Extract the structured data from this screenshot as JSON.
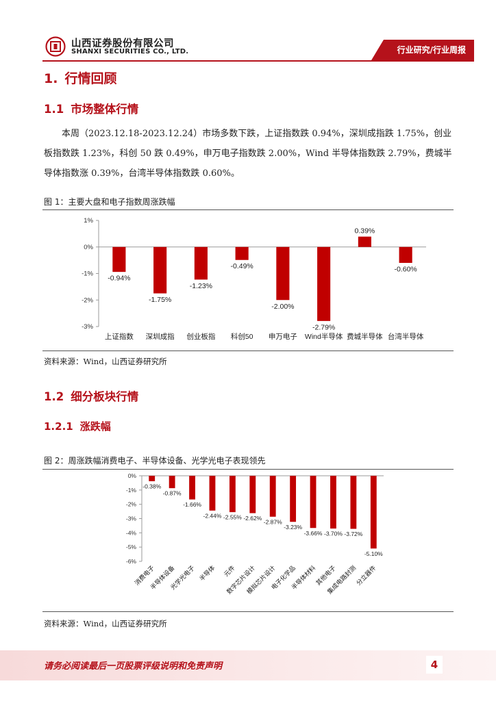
{
  "header": {
    "company_cn": "山西证券股份有限公司",
    "company_en": "SHANXI SECURITIES CO., LTD.",
    "report_tag": "行业研究/行业周报"
  },
  "section1": {
    "number": "1.",
    "title": "行情回顾"
  },
  "section1_1": {
    "number": "1.1",
    "title": "市场整体行情"
  },
  "paragraph": "本周（2023.12.18-2023.12.24）市场多数下跌，上证指数跌 0.94%，深圳成指跌 1.75%，创业板指数跌 1.23%，科创 50 跌 0.49%，申万电子指数跌 2.00%，Wind 半导体指数跌 2.79%，费城半导体指数涨 0.39%，台湾半导体指数跌 0.60%。",
  "figure1": {
    "caption": "图 1：主要大盘和电子指数周涨跌幅",
    "source": "资料来源：Wind，山西证券研究所"
  },
  "section1_2": {
    "number": "1.2",
    "title": "细分板块行情"
  },
  "section1_2_1": {
    "number": "1.2.1",
    "title": "涨跌幅"
  },
  "figure2": {
    "caption": "图 2：周涨跌幅消费电子、半导体设备、光学光电子表现领先",
    "source": "资料来源：Wind，山西证券研究所"
  },
  "chart_data": [
    {
      "type": "bar",
      "title": "",
      "categories": [
        "上证指数",
        "深圳成指",
        "创业板指",
        "科创50",
        "申万电子",
        "Wind半导体",
        "费城半导体",
        "台湾半导体"
      ],
      "values": [
        -0.94,
        -1.75,
        -1.23,
        -0.49,
        -2.0,
        -2.79,
        0.39,
        -0.6
      ],
      "value_labels": [
        "-0.94%",
        "-1.75%",
        "-1.23%",
        "-0.49%",
        "-2.00%",
        "-2.79%",
        "0.39%",
        "-0.60%"
      ],
      "y_ticks": [
        1,
        0,
        -1,
        -2,
        -3
      ],
      "y_tick_labels": [
        "1%",
        "0%",
        "-1%",
        "-2%",
        "-3%"
      ],
      "ylim": [
        -3,
        1
      ],
      "color": "#c00000",
      "xlabel": "",
      "ylabel": "",
      "grid": false
    },
    {
      "type": "bar",
      "title": "",
      "categories": [
        "消费电子",
        "半导体设备",
        "光学光电子",
        "半导体",
        "元件",
        "数字芯片设计",
        "模拟芯片设计",
        "电子化学品",
        "半导体材料",
        "其他电子",
        "集成电路封测",
        "分立器件"
      ],
      "values": [
        -0.38,
        -0.87,
        -1.66,
        -2.44,
        -2.55,
        -2.62,
        -2.87,
        -3.23,
        -3.66,
        -3.7,
        -3.72,
        -5.1
      ],
      "value_labels": [
        "-0.38%",
        "-0.87%",
        "-1.66%",
        "-2.44%",
        "-2.55%",
        "-2.62%",
        "-2.87%",
        "-3.23%",
        "-3.66%",
        "-3.70%",
        "-3.72%",
        "-5.10%"
      ],
      "y_ticks": [
        0,
        -1,
        -2,
        -3,
        -4,
        -5,
        -6
      ],
      "y_tick_labels": [
        "0%",
        "-1%",
        "-2%",
        "-3%",
        "-4%",
        "-5%",
        "-6%"
      ],
      "ylim": [
        -6,
        0
      ],
      "color": "#c00000",
      "xlabel": "",
      "ylabel": "",
      "grid": false
    }
  ],
  "footer": {
    "disclaimer": "请务必阅读最后一页股票评级说明和免责声明",
    "page_number": "4"
  },
  "colors": {
    "brand_red": "#b5121b",
    "bar_red": "#c00000"
  }
}
